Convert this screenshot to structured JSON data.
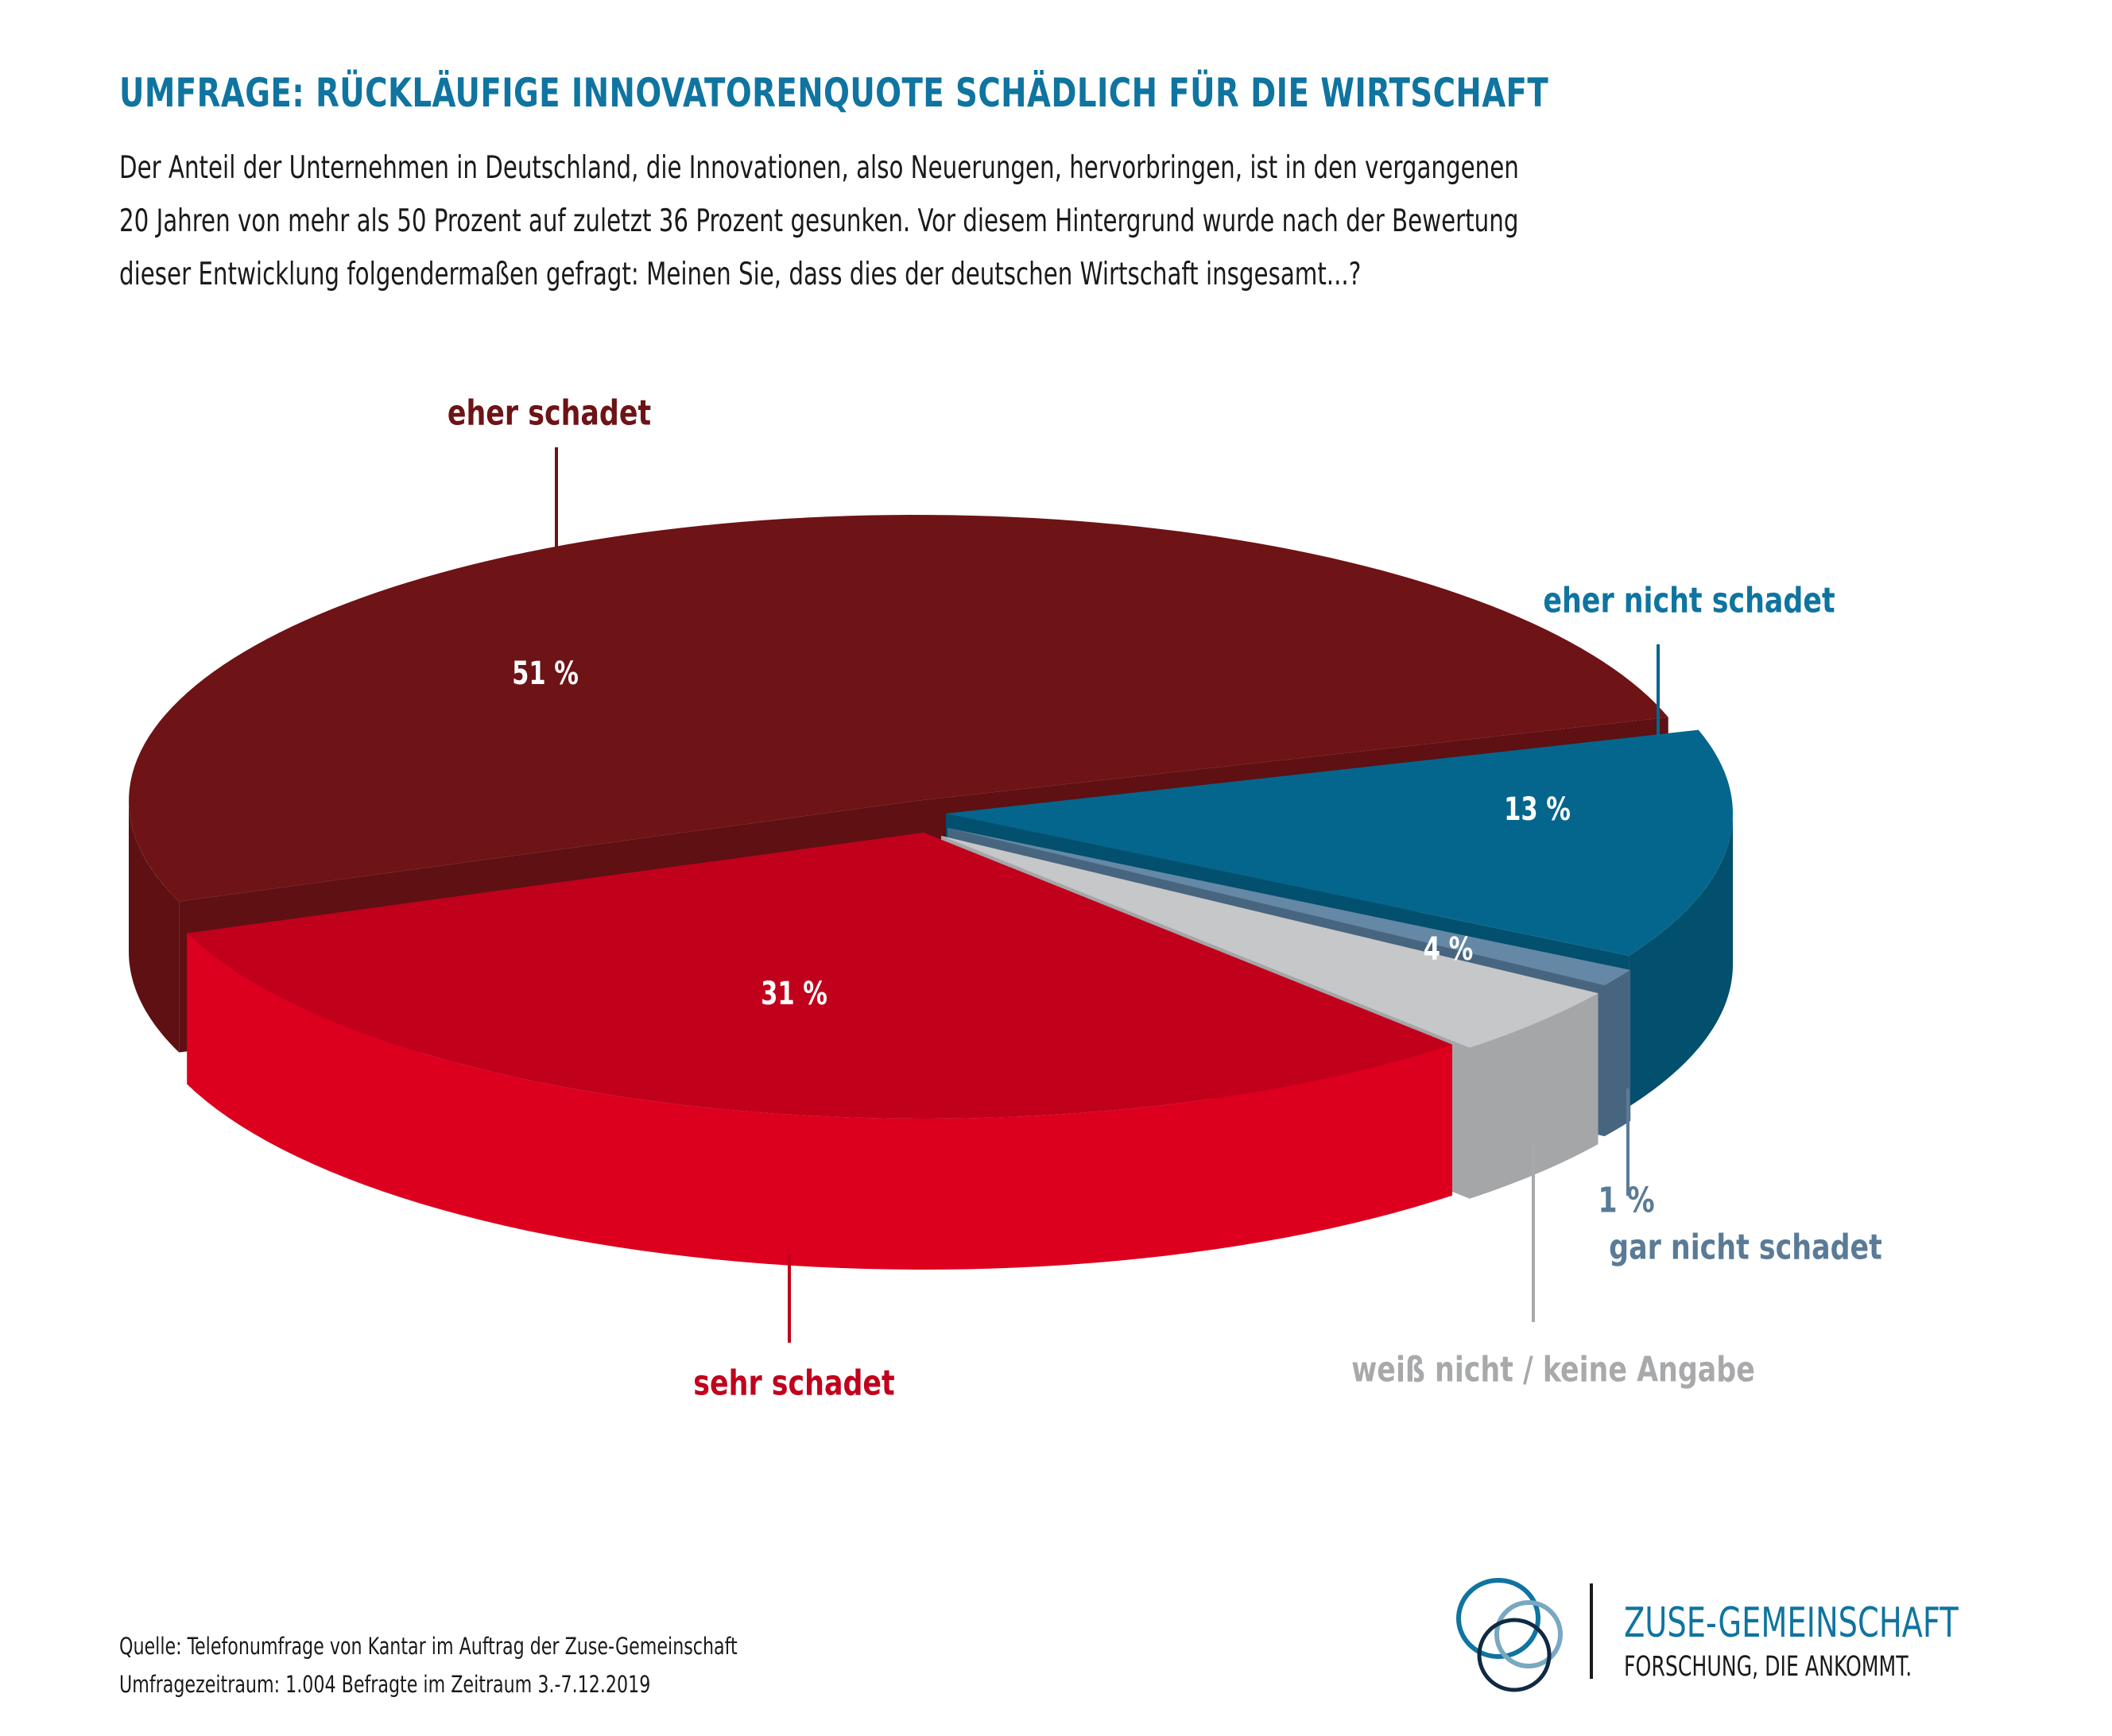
{
  "header": {
    "title": "UMFRAGE: RÜCKLÄUFIGE INNOVATORENQUOTE SCHÄDLICH FÜR DIE WIRTSCHAFT",
    "intro_lines": [
      "Der Anteil der Unternehmen in Deutschland, die Innovationen, also Neuerungen, hervorbringen, ist in den vergangenen",
      "20 Jahren von mehr als 50 Prozent auf zuletzt 36 Prozent gesunken. Vor diesem Hintergrund wurde nach der Bewertung",
      "dieser Entwicklung folgendermaßen gefragt: Meinen Sie, dass dies der deutschen Wirtschaft insgesamt...?"
    ]
  },
  "chart_data": {
    "type": "pie",
    "style": "3d-exploded",
    "title": "UMFRAGE: RÜCKLÄUFIGE INNOVATORENQUOTE SCHÄDLICH FÜR DIE WIRTSCHAFT",
    "categories": [
      "eher schadet",
      "eher nicht schadet",
      "gar nicht schadet",
      "weiß nicht / keine Angabe",
      "sehr schadet"
    ],
    "values": [
      51,
      13,
      1,
      4,
      31
    ],
    "unit": "%",
    "slices": [
      {
        "label": "eher schadet",
        "value": 51,
        "value_label": "51 %",
        "color": "#6e1316",
        "side_color": "#5e1013",
        "label_color": "#6e1316"
      },
      {
        "label": "eher nicht schadet",
        "value": 13,
        "value_label": "13 %",
        "color": "#05668d",
        "side_color": "#024f6e",
        "label_color": "#0f74a0"
      },
      {
        "label": "gar nicht schadet",
        "value": 1,
        "value_label": "1 %",
        "color": "#6488a5",
        "side_color": "#48657f",
        "label_color": "#5a7b97"
      },
      {
        "label": "weiß nicht / keine Angabe",
        "value": 4,
        "value_label": "4 %",
        "color": "#c6c7c9",
        "side_color": "#a5a6a8",
        "label_color": "#a8a9ab"
      },
      {
        "label": "sehr schadet",
        "value": 31,
        "value_label": "31 %",
        "color": "#c1001c",
        "side_color": "#dc001e",
        "label_color": "#c1001c"
      }
    ],
    "legend": "none"
  },
  "footer": {
    "source": "Quelle: Telefonumfrage von Kantar im Auftrag der Zuse-Gemeinschaft",
    "period": "Umfragezeitraum: 1.004 Befragte im Zeitraum 3.-7.12.2019"
  },
  "logo": {
    "name": "ZUSE-GEMEINSCHAFT",
    "tagline": "FORSCHUNG, DIE ANKOMMT.",
    "colors": [
      "#0f74a0",
      "#79a8c0",
      "#102a44"
    ]
  }
}
